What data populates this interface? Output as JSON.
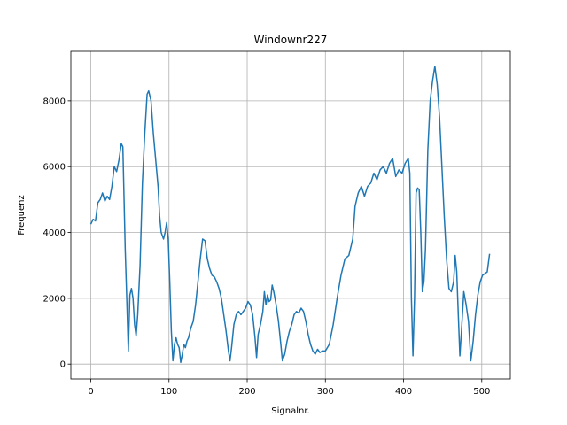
{
  "chart_data": {
    "type": "line",
    "title": "Windownr227",
    "xlabel": "Signalnr.",
    "ylabel": "Frequenz",
    "grid": true,
    "xlim": [
      -25.5,
      536.5
    ],
    "xticks": [
      0,
      100,
      200,
      300,
      400,
      500
    ],
    "ylim": [
      -452,
      9503
    ],
    "yticks": [
      0,
      2000,
      4000,
      6000,
      8000
    ],
    "x": [
      0,
      3,
      6,
      9,
      12,
      15,
      18,
      21,
      24,
      27,
      30,
      33,
      36,
      39,
      41,
      44,
      47,
      48,
      50,
      52,
      54,
      56,
      58,
      60,
      63,
      66,
      69,
      72,
      74,
      77,
      80,
      83,
      86,
      88,
      90,
      93,
      95,
      97,
      99,
      101,
      103,
      105,
      107,
      109,
      111,
      113,
      115,
      117,
      119,
      121,
      123,
      125,
      128,
      131,
      134,
      137,
      140,
      143,
      146,
      149,
      152,
      155,
      158,
      161,
      164,
      167,
      170,
      173,
      176,
      178,
      180,
      183,
      186,
      189,
      192,
      195,
      198,
      201,
      204,
      207,
      210,
      212,
      214,
      217,
      220,
      222,
      224,
      226,
      228,
      230,
      232,
      234,
      237,
      240,
      243,
      245,
      248,
      251,
      254,
      257,
      260,
      263,
      266,
      269,
      272,
      275,
      278,
      281,
      284,
      287,
      290,
      293,
      296,
      300,
      305,
      310,
      315,
      320,
      325,
      330,
      335,
      338,
      342,
      346,
      350,
      354,
      358,
      362,
      366,
      370,
      374,
      378,
      382,
      386,
      390,
      394,
      398,
      402,
      406,
      408,
      410,
      412,
      414,
      416,
      418,
      420,
      422,
      424,
      426,
      428,
      431,
      434,
      437,
      440,
      443,
      446,
      449,
      452,
      455,
      458,
      461,
      464,
      466,
      468,
      470,
      472,
      474,
      477,
      480,
      483,
      486,
      489,
      492,
      495,
      498,
      501,
      504,
      507,
      510
    ],
    "series": [
      {
        "name": "Frequenz",
        "color": "#1f77b4",
        "values": [
          4250,
          4400,
          4350,
          4900,
          5000,
          5200,
          4950,
          5100,
          5000,
          5400,
          6000,
          5850,
          6200,
          6700,
          6600,
          3500,
          1200,
          400,
          2100,
          2300,
          2000,
          1200,
          850,
          1500,
          3000,
          5500,
          7000,
          8200,
          8300,
          8000,
          7000,
          6200,
          5400,
          4500,
          4000,
          3800,
          4000,
          4300,
          3800,
          2500,
          1000,
          100,
          600,
          800,
          600,
          500,
          50,
          300,
          600,
          500,
          700,
          800,
          1100,
          1300,
          1800,
          2500,
          3200,
          3800,
          3750,
          3200,
          2900,
          2700,
          2650,
          2500,
          2300,
          2000,
          1500,
          1000,
          400,
          100,
          500,
          1200,
          1500,
          1600,
          1500,
          1600,
          1700,
          1900,
          1800,
          1500,
          800,
          200,
          900,
          1200,
          1600,
          2200,
          1800,
          2100,
          1900,
          1950,
          2400,
          2200,
          1800,
          1300,
          600,
          100,
          300,
          700,
          1000,
          1200,
          1500,
          1600,
          1550,
          1700,
          1600,
          1300,
          900,
          600,
          400,
          300,
          450,
          350,
          400,
          400,
          600,
          1200,
          2000,
          2700,
          3200,
          3300,
          3800,
          4800,
          5200,
          5400,
          5100,
          5400,
          5500,
          5800,
          5600,
          5900,
          6000,
          5800,
          6100,
          6250,
          5700,
          5900,
          5800,
          6100,
          6250,
          5800,
          2000,
          250,
          2000,
          5200,
          5350,
          5300,
          4000,
          2200,
          2500,
          3500,
          6500,
          8000,
          8600,
          9050,
          8500,
          7500,
          6000,
          4500,
          3200,
          2300,
          2200,
          2500,
          3300,
          2800,
          1500,
          250,
          1000,
          2200,
          1800,
          1300,
          100,
          700,
          1500,
          2100,
          2500,
          2700,
          2750,
          2800,
          3350
        ]
      }
    ]
  }
}
